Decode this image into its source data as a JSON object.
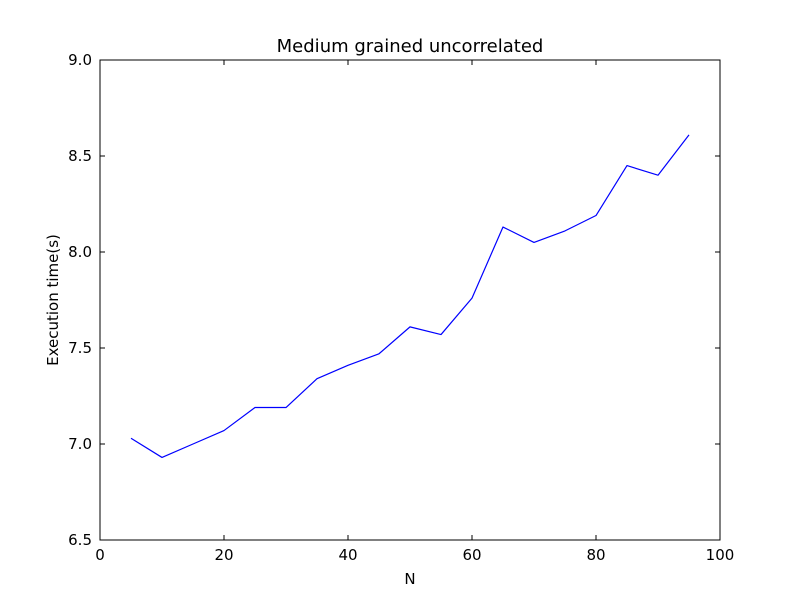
{
  "chart_data": {
    "type": "line",
    "title": "Medium grained uncorrelated",
    "xlabel": "N",
    "ylabel": "Execution time(s)",
    "xlim": [
      0,
      100
    ],
    "ylim": [
      6.5,
      9.0
    ],
    "x_ticks": [
      "0",
      "20",
      "40",
      "60",
      "80",
      "100"
    ],
    "y_ticks": [
      "6.5",
      "7.0",
      "7.5",
      "8.0",
      "8.5",
      "9.0"
    ],
    "grid": false,
    "legend": "none",
    "series": [
      {
        "color": "#0000ff",
        "x": [
          5,
          10,
          15,
          20,
          25,
          30,
          35,
          40,
          45,
          50,
          55,
          60,
          65,
          70,
          75,
          80,
          85,
          90,
          95
        ],
        "y": [
          7.03,
          6.93,
          7.0,
          7.07,
          7.19,
          7.19,
          7.34,
          7.41,
          7.47,
          7.61,
          7.57,
          7.76,
          8.13,
          8.05,
          8.11,
          8.19,
          8.45,
          8.4,
          8.61
        ]
      }
    ]
  }
}
